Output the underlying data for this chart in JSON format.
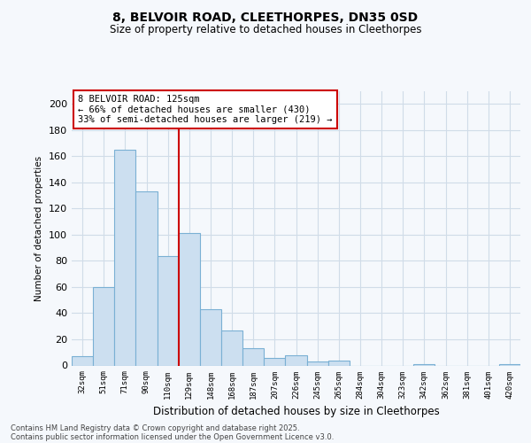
{
  "title1": "8, BELVOIR ROAD, CLEETHORPES, DN35 0SD",
  "title2": "Size of property relative to detached houses in Cleethorpes",
  "xlabel": "Distribution of detached houses by size in Cleethorpes",
  "ylabel": "Number of detached properties",
  "categories": [
    "32sqm",
    "51sqm",
    "71sqm",
    "90sqm",
    "110sqm",
    "129sqm",
    "148sqm",
    "168sqm",
    "187sqm",
    "207sqm",
    "226sqm",
    "245sqm",
    "265sqm",
    "284sqm",
    "304sqm",
    "323sqm",
    "342sqm",
    "362sqm",
    "381sqm",
    "401sqm",
    "420sqm"
  ],
  "values": [
    7,
    60,
    165,
    133,
    84,
    101,
    43,
    27,
    13,
    6,
    8,
    3,
    4,
    0,
    0,
    0,
    1,
    0,
    0,
    0,
    1
  ],
  "bar_color": "#ccdff0",
  "bar_edge_color": "#7ab0d4",
  "red_line_index": 5,
  "annotation_line1": "8 BELVOIR ROAD: 125sqm",
  "annotation_line2": "← 66% of detached houses are smaller (430)",
  "annotation_line3": "33% of semi-detached houses are larger (219) →",
  "annotation_box_color": "#cc0000",
  "ylim": [
    0,
    210
  ],
  "yticks": [
    0,
    20,
    40,
    60,
    80,
    100,
    120,
    140,
    160,
    180,
    200
  ],
  "footer1": "Contains HM Land Registry data © Crown copyright and database right 2025.",
  "footer2": "Contains public sector information licensed under the Open Government Licence v3.0.",
  "bg_color": "#f5f8fc",
  "plot_bg": "#f5f8fc",
  "grid_color": "#d0dce8"
}
